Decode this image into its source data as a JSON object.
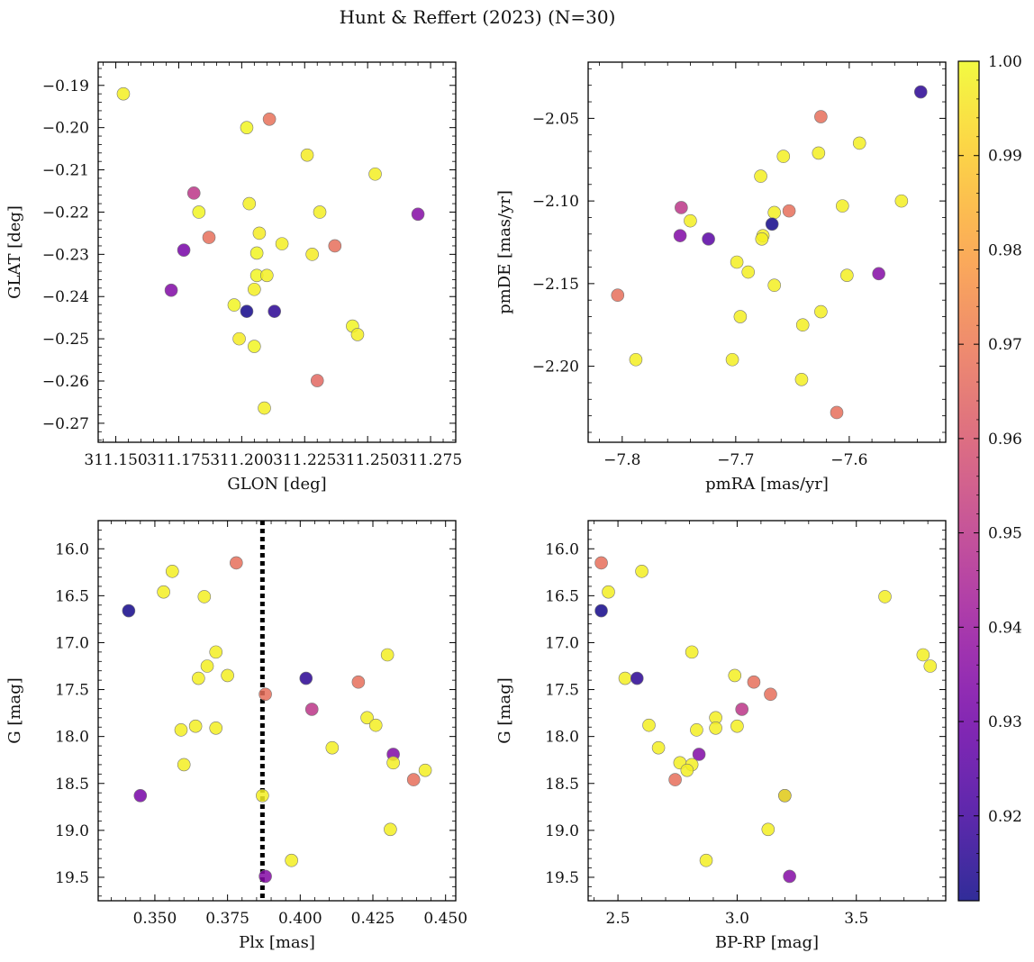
{
  "figure": {
    "title": "Hunt & Reffert (2023) (N=30)"
  },
  "colorbar": {
    "min": 0.911,
    "max": 1.0,
    "ticks": [
      0.92,
      0.93,
      0.94,
      0.95,
      0.96,
      0.97,
      0.98,
      0.99,
      1.0
    ],
    "tick_labels": [
      "0.92",
      "0.93",
      "0.94",
      "0.95",
      "0.96",
      "0.97",
      "0.98",
      "0.99",
      "1.00"
    ]
  },
  "colors": {
    "plasma": [
      "#0d0887",
      "#46039f",
      "#7201a8",
      "#9c179e",
      "#bd3786",
      "#d8576b",
      "#ed7953",
      "#fb9f3a",
      "#fdca26",
      "#f0f921"
    ],
    "marker_edge": "#777777",
    "axis": "#000000"
  },
  "chart_data": [
    {
      "type": "scatter",
      "id": "tl",
      "xlabel": "GLON [deg]",
      "ylabel": "GLAT [deg]",
      "xlim": [
        311.143,
        311.285
      ],
      "ylim": [
        -0.2745,
        -0.1845
      ],
      "invert_y": false,
      "xticks": [
        311.15,
        311.175,
        311.2,
        311.225,
        311.25,
        311.275
      ],
      "xtick_labels": [
        "311.150",
        "311.175",
        "311.200",
        "311.225",
        "311.250",
        "311.275"
      ],
      "yticks": [
        -0.19,
        -0.2,
        -0.21,
        -0.22,
        -0.23,
        -0.24,
        -0.25,
        -0.26,
        -0.27
      ],
      "ytick_labels": [
        "−0.19",
        "−0.20",
        "−0.21",
        "−0.22",
        "−0.23",
        "−0.24",
        "−0.25",
        "−0.26",
        "−0.27"
      ],
      "x": [
        311.153,
        311.211,
        311.202,
        311.226,
        311.253,
        311.181,
        311.183,
        311.203,
        311.207,
        311.187,
        311.231,
        311.27,
        311.177,
        311.216,
        311.237,
        311.206,
        311.228,
        311.206,
        311.21,
        311.172,
        311.205,
        311.197,
        311.202,
        311.213,
        311.244,
        311.246,
        311.199,
        311.205,
        311.23,
        311.209
      ],
      "y": [
        -0.192,
        -0.198,
        -0.2,
        -0.2065,
        -0.211,
        -0.2155,
        -0.22,
        -0.218,
        -0.225,
        -0.226,
        -0.22,
        -0.2205,
        -0.229,
        -0.2275,
        -0.228,
        -0.2297,
        -0.23,
        -0.235,
        -0.235,
        -0.2385,
        -0.2383,
        -0.242,
        -0.2435,
        -0.2435,
        -0.247,
        -0.249,
        -0.25,
        -0.2518,
        -0.2599,
        -0.2664
      ],
      "c": [
        0.998,
        0.968,
        0.999,
        0.997,
        0.998,
        0.95,
        0.999,
        0.998,
        0.997,
        0.967,
        0.998,
        0.935,
        0.932,
        0.998,
        0.967,
        0.999,
        0.997,
        0.999,
        0.998,
        0.934,
        0.998,
        0.999,
        0.912,
        0.916,
        0.999,
        0.998,
        0.997,
        0.999,
        0.965,
        0.998
      ]
    },
    {
      "type": "scatter",
      "id": "tr",
      "xlabel": "pmRA [mas/yr]",
      "ylabel": "pmDE [mas/yr]",
      "xlim": [
        -7.83,
        -7.515
      ],
      "ylim": [
        -2.246,
        -2.016
      ],
      "invert_y": false,
      "xticks": [
        -7.8,
        -7.7,
        -7.6
      ],
      "xtick_labels": [
        "−7.8",
        "−7.7",
        "−7.6"
      ],
      "yticks": [
        -2.05,
        -2.1,
        -2.15,
        -2.2
      ],
      "ytick_labels": [
        "−2.05",
        "−2.10",
        "−2.15",
        "−2.20"
      ],
      "x": [
        -7.537,
        -7.625,
        -7.591,
        -7.627,
        -7.658,
        -7.678,
        -7.554,
        -7.606,
        -7.666,
        -7.748,
        -7.74,
        -7.668,
        -7.653,
        -7.749,
        -7.724,
        -7.676,
        -7.677,
        -7.699,
        -7.689,
        -7.602,
        -7.574,
        -7.666,
        -7.804,
        -7.696,
        -7.625,
        -7.641,
        -7.788,
        -7.703,
        -7.642,
        -7.611
      ],
      "y": [
        -2.034,
        -2.049,
        -2.065,
        -2.071,
        -2.073,
        -2.085,
        -2.1,
        -2.103,
        -2.107,
        -2.104,
        -2.112,
        -2.114,
        -2.106,
        -2.121,
        -2.123,
        -2.121,
        -2.123,
        -2.137,
        -2.143,
        -2.145,
        -2.144,
        -2.151,
        -2.157,
        -2.17,
        -2.167,
        -2.175,
        -2.196,
        -2.196,
        -2.208,
        -2.228
      ],
      "c": [
        0.916,
        0.967,
        0.998,
        0.998,
        0.998,
        0.998,
        0.998,
        0.998,
        0.998,
        0.95,
        0.998,
        0.912,
        0.967,
        0.934,
        0.925,
        0.998,
        0.998,
        0.998,
        0.998,
        0.998,
        0.935,
        0.998,
        0.967,
        0.998,
        0.998,
        0.998,
        0.998,
        0.998,
        0.998,
        0.967
      ]
    },
    {
      "type": "scatter",
      "id": "bl",
      "xlabel": "Plx [mas]",
      "ylabel": "G [mag]",
      "xlim": [
        0.3305,
        0.4535
      ],
      "ylim": [
        19.75,
        15.7
      ],
      "invert_y": true,
      "xticks": [
        0.35,
        0.375,
        0.4,
        0.425,
        0.45
      ],
      "xtick_labels": [
        "0.350",
        "0.375",
        "0.400",
        "0.425",
        "0.450"
      ],
      "yticks": [
        16.0,
        16.5,
        17.0,
        17.5,
        18.0,
        18.5,
        19.0,
        19.5
      ],
      "ytick_labels": [
        "16.0",
        "16.5",
        "17.0",
        "17.5",
        "18.0",
        "18.5",
        "19.0",
        "19.5"
      ],
      "vline": {
        "x": 0.387,
        "style": "dotted",
        "color": "#000000"
      },
      "x": [
        0.378,
        0.356,
        0.353,
        0.367,
        0.341,
        0.371,
        0.43,
        0.368,
        0.365,
        0.375,
        0.402,
        0.42,
        0.388,
        0.404,
        0.423,
        0.426,
        0.359,
        0.364,
        0.371,
        0.411,
        0.432,
        0.432,
        0.36,
        0.443,
        0.439,
        0.345,
        0.387,
        0.431,
        0.397,
        0.388
      ],
      "y": [
        16.15,
        16.24,
        16.46,
        16.51,
        16.66,
        17.1,
        17.13,
        17.25,
        17.38,
        17.35,
        17.38,
        17.42,
        17.55,
        17.71,
        17.8,
        17.88,
        17.93,
        17.89,
        17.91,
        18.12,
        18.19,
        18.28,
        18.3,
        18.36,
        18.46,
        18.63,
        18.63,
        18.99,
        19.32,
        19.49
      ],
      "c": [
        0.967,
        0.998,
        0.998,
        0.998,
        0.912,
        0.998,
        0.998,
        0.998,
        0.998,
        0.998,
        0.916,
        0.967,
        0.967,
        0.95,
        0.998,
        0.998,
        0.998,
        0.998,
        0.998,
        0.998,
        0.934,
        0.998,
        0.998,
        0.998,
        0.967,
        0.932,
        0.998,
        0.998,
        0.998,
        0.935
      ]
    },
    {
      "type": "scatter",
      "id": "br",
      "xlabel": "BP-RP [mag]",
      "ylabel": "G [mag]",
      "xlim": [
        2.375,
        3.875
      ],
      "ylim": [
        19.75,
        15.7
      ],
      "invert_y": true,
      "xticks": [
        2.5,
        3.0,
        3.5
      ],
      "xtick_labels": [
        "2.5",
        "3.0",
        "3.5"
      ],
      "yticks": [
        16.0,
        16.5,
        17.0,
        17.5,
        18.0,
        18.5,
        19.0,
        19.5
      ],
      "ytick_labels": [
        "16.0",
        "16.5",
        "17.0",
        "17.5",
        "18.0",
        "18.5",
        "19.0",
        "19.5"
      ],
      "x": [
        2.43,
        2.6,
        2.46,
        3.62,
        2.43,
        2.81,
        3.78,
        3.81,
        2.53,
        2.99,
        2.58,
        3.07,
        3.14,
        3.02,
        2.91,
        2.63,
        3.0,
        2.83,
        2.91,
        2.67,
        2.84,
        2.76,
        2.81,
        2.79,
        2.74,
        3.2,
        3.2,
        3.13,
        2.87,
        3.22
      ],
      "y": [
        16.15,
        16.24,
        16.46,
        16.51,
        16.66,
        17.1,
        17.13,
        17.25,
        17.38,
        17.35,
        17.38,
        17.42,
        17.55,
        17.71,
        17.8,
        17.88,
        17.89,
        17.93,
        17.91,
        18.12,
        18.19,
        18.28,
        18.3,
        18.36,
        18.46,
        18.63,
        18.63,
        18.99,
        19.32,
        19.49
      ],
      "c": [
        0.967,
        0.998,
        0.998,
        0.998,
        0.912,
        0.998,
        0.998,
        0.998,
        0.998,
        0.998,
        0.916,
        0.967,
        0.967,
        0.95,
        0.998,
        0.998,
        0.998,
        0.998,
        0.998,
        0.998,
        0.934,
        0.998,
        0.998,
        0.998,
        0.967,
        0.932,
        0.998,
        0.998,
        0.998,
        0.935
      ]
    }
  ]
}
